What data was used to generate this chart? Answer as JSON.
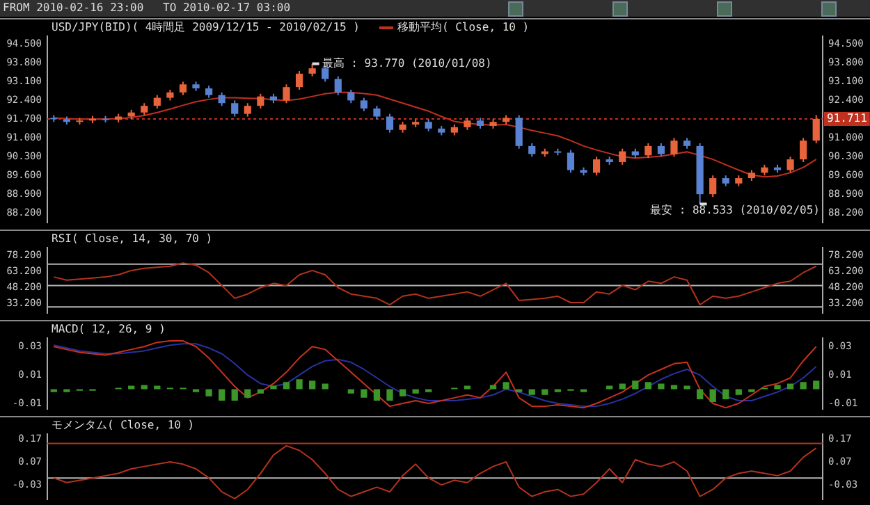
{
  "chart_data": [
    {
      "type": "candlestick",
      "title": "USD/JPY(BID)( 4時間足 2009/12/15 - 2010/02/15 )",
      "tick_labels": "y",
      "marker": "none",
      "categories": [
        null,
        null,
        null,
        null,
        null,
        null,
        null,
        null,
        null,
        null,
        null,
        null,
        null,
        null,
        null,
        null,
        null,
        null,
        null,
        null,
        null,
        null,
        null,
        null,
        null,
        null,
        null,
        null,
        null,
        null,
        null,
        null,
        null,
        null,
        null,
        null,
        null,
        null,
        null,
        null,
        null,
        null,
        null,
        null,
        null,
        null,
        null,
        null,
        null,
        null,
        null,
        null,
        null,
        null,
        null,
        null,
        null,
        null,
        null,
        null
      ],
      "ohlc": [
        [
          91.75,
          91.85,
          91.6,
          91.7
        ],
        [
          91.7,
          91.8,
          91.5,
          91.6
        ],
        [
          91.6,
          91.75,
          91.5,
          91.65
        ],
        [
          91.65,
          91.82,
          91.55,
          91.72
        ],
        [
          91.72,
          91.82,
          91.58,
          91.68
        ],
        [
          91.68,
          91.9,
          91.58,
          91.8
        ],
        [
          91.8,
          92.05,
          91.7,
          91.95
        ],
        [
          91.95,
          92.3,
          91.85,
          92.2
        ],
        [
          92.2,
          92.6,
          92.1,
          92.5
        ],
        [
          92.5,
          92.8,
          92.4,
          92.7
        ],
        [
          92.7,
          93.1,
          92.6,
          93.0
        ],
        [
          93.0,
          93.1,
          92.75,
          92.85
        ],
        [
          92.85,
          92.95,
          92.5,
          92.6
        ],
        [
          92.6,
          92.7,
          92.2,
          92.3
        ],
        [
          92.3,
          92.4,
          91.8,
          91.9
        ],
        [
          91.9,
          92.3,
          91.8,
          92.2
        ],
        [
          92.2,
          92.65,
          92.1,
          92.55
        ],
        [
          92.55,
          92.65,
          92.3,
          92.4
        ],
        [
          92.4,
          93.0,
          92.3,
          92.9
        ],
        [
          92.9,
          93.5,
          92.8,
          93.4
        ],
        [
          93.4,
          93.77,
          93.3,
          93.6
        ],
        [
          93.6,
          93.7,
          93.1,
          93.2
        ],
        [
          93.2,
          93.3,
          92.6,
          92.7
        ],
        [
          92.7,
          92.8,
          92.3,
          92.4
        ],
        [
          92.4,
          92.5,
          92.0,
          92.1
        ],
        [
          92.1,
          92.2,
          91.7,
          91.8
        ],
        [
          91.8,
          91.9,
          91.2,
          91.3
        ],
        [
          91.3,
          91.6,
          91.2,
          91.5
        ],
        [
          91.5,
          91.7,
          91.4,
          91.6
        ],
        [
          91.6,
          91.7,
          91.25,
          91.35
        ],
        [
          91.35,
          91.45,
          91.1,
          91.2
        ],
        [
          91.2,
          91.5,
          91.1,
          91.4
        ],
        [
          91.4,
          91.75,
          91.3,
          91.65
        ],
        [
          91.65,
          91.75,
          91.35,
          91.45
        ],
        [
          91.45,
          91.7,
          91.35,
          91.6
        ],
        [
          91.6,
          91.85,
          91.5,
          91.75
        ],
        [
          91.75,
          91.85,
          90.6,
          90.7
        ],
        [
          90.7,
          90.8,
          90.3,
          90.4
        ],
        [
          90.4,
          90.6,
          90.3,
          90.5
        ],
        [
          90.5,
          90.6,
          90.35,
          90.45
        ],
        [
          90.45,
          90.55,
          89.7,
          89.8
        ],
        [
          89.8,
          89.9,
          89.6,
          89.7
        ],
        [
          89.7,
          90.3,
          89.6,
          90.2
        ],
        [
          90.2,
          90.3,
          90.0,
          90.1
        ],
        [
          90.1,
          90.6,
          90.0,
          90.5
        ],
        [
          90.5,
          90.6,
          90.25,
          90.35
        ],
        [
          90.35,
          90.8,
          90.25,
          90.7
        ],
        [
          90.7,
          90.8,
          90.3,
          90.4
        ],
        [
          90.4,
          91.0,
          90.3,
          90.9
        ],
        [
          90.9,
          91.0,
          90.6,
          90.7
        ],
        [
          90.7,
          90.8,
          88.533,
          88.9
        ],
        [
          88.9,
          89.6,
          88.8,
          89.5
        ],
        [
          89.5,
          89.6,
          89.2,
          89.3
        ],
        [
          89.3,
          89.6,
          89.2,
          89.5
        ],
        [
          89.5,
          89.8,
          89.4,
          89.7
        ],
        [
          89.7,
          90.0,
          89.6,
          89.9
        ],
        [
          89.9,
          90.0,
          89.7,
          89.8
        ],
        [
          89.8,
          90.3,
          89.7,
          90.2
        ],
        [
          90.2,
          91.0,
          90.1,
          90.9
        ],
        [
          90.9,
          91.85,
          90.8,
          91.711
        ]
      ],
      "colors": [
        "#5a82d2",
        "#5a82d2",
        "#e8643c",
        "#e8643c",
        "#5a82d2",
        "#e8643c",
        "#e8643c",
        "#e8643c",
        "#e8643c",
        "#e8643c",
        "#e8643c",
        "#5a82d2",
        "#5a82d2",
        "#5a82d2",
        "#5a82d2",
        "#e8643c",
        "#e8643c",
        "#5a82d2",
        "#e8643c",
        "#e8643c",
        "#e8643c",
        "#5a82d2",
        "#5a82d2",
        "#5a82d2",
        "#5a82d2",
        "#5a82d2",
        "#5a82d2",
        "#e8643c",
        "#e8643c",
        "#5a82d2",
        "#5a82d2",
        "#e8643c",
        "#e8643c",
        "#5a82d2",
        "#e8643c",
        "#e8643c",
        "#5a82d2",
        "#5a82d2",
        "#e8643c",
        "#5a82d2",
        "#5a82d2",
        "#5a82d2",
        "#e8643c",
        "#5a82d2",
        "#e8643c",
        "#5a82d2",
        "#e8643c",
        "#5a82d2",
        "#e8643c",
        "#5a82d2",
        "#5a82d2",
        "#e8643c",
        "#5a82d2",
        "#e8643c",
        "#e8643c",
        "#e8643c",
        "#5a82d2",
        "#e8643c",
        "#e8643c",
        "#e8643c"
      ],
      "series": [
        {
          "type": "line",
          "name": "移動平均( Close, 10 )",
          "color": "#c0301e",
          "values": [
            91.75,
            91.72,
            91.7,
            91.7,
            91.7,
            91.72,
            91.76,
            91.84,
            91.95,
            92.08,
            92.22,
            92.35,
            92.44,
            92.5,
            92.5,
            92.48,
            92.47,
            92.43,
            92.4,
            92.45,
            92.55,
            92.65,
            92.7,
            92.7,
            92.66,
            92.6,
            92.45,
            92.3,
            92.15,
            92.0,
            91.8,
            91.62,
            91.55,
            91.5,
            91.48,
            91.5,
            91.4,
            91.28,
            91.18,
            91.08,
            90.9,
            90.7,
            90.55,
            90.42,
            90.3,
            90.25,
            90.28,
            90.32,
            90.4,
            90.48,
            90.35,
            90.2,
            90.0,
            89.8,
            89.62,
            89.55,
            89.58,
            89.7,
            89.9,
            90.2
          ]
        }
      ],
      "ylim": [
        87.85,
        94.8
      ],
      "yticks": [
        {
          "value": 94.5,
          "label": "94.500"
        },
        {
          "value": 93.8,
          "label": "93.800"
        },
        {
          "value": 93.1,
          "label": "93.100"
        },
        {
          "value": 92.4,
          "label": "92.400"
        },
        {
          "value": 91.7,
          "label": "91.700"
        },
        {
          "value": 91.0,
          "label": "91.000"
        },
        {
          "value": 90.3,
          "label": "90.300"
        },
        {
          "value": 89.6,
          "label": "89.600"
        },
        {
          "value": 88.9,
          "label": "88.900"
        },
        {
          "value": 88.2,
          "label": "88.200"
        }
      ],
      "y2lim": [
        87.85,
        94.8
      ],
      "y2ticks": [
        {
          "value": 94.5,
          "label": "94.500"
        },
        {
          "value": 93.8,
          "label": "93.800"
        },
        {
          "value": 93.1,
          "label": "93.100"
        },
        {
          "value": 92.4,
          "label": "92.400"
        },
        {
          "value": 91.0,
          "label": "91.000"
        },
        {
          "value": 90.3,
          "label": "90.300"
        },
        {
          "value": 89.6,
          "label": "89.600"
        },
        {
          "value": 88.9,
          "label": "88.900"
        },
        {
          "value": 88.2,
          "label": "88.200"
        }
      ],
      "ref_lines": [
        {
          "axis": "y",
          "value": 91.711,
          "label": "91.711",
          "color": "#c0301e",
          "line_style": "dotted"
        }
      ],
      "annotations": [
        "FROM 2010-02-16 23:00",
        "TO 2010-02-17 03:00",
        "最高 : 93.770 (2010/01/08)",
        "最安 : 88.533 (2010/02/05)"
      ]
    },
    {
      "type": "line",
      "title": "RSI( Close, 14, 30, 70 )",
      "tick_labels": "y",
      "marker": "none",
      "categories": [
        null,
        null,
        null,
        null,
        null,
        null,
        null,
        null,
        null,
        null,
        null,
        null,
        null,
        null,
        null,
        null,
        null,
        null,
        null,
        null,
        null,
        null,
        null,
        null,
        null,
        null,
        null,
        null,
        null,
        null,
        null,
        null,
        null,
        null,
        null,
        null,
        null,
        null,
        null,
        null,
        null,
        null,
        null,
        null,
        null,
        null,
        null,
        null,
        null,
        null,
        null,
        null,
        null,
        null,
        null,
        null,
        null,
        null,
        null,
        null
      ],
      "series": [
        {
          "color": "#b4321e",
          "values": [
            58,
            55,
            56,
            57,
            58,
            60,
            64,
            66,
            67,
            68,
            71,
            69,
            62,
            50,
            38,
            42,
            48,
            52,
            50,
            60,
            64,
            60,
            48,
            42,
            40,
            38,
            32,
            40,
            42,
            38,
            40,
            42,
            44,
            40,
            46,
            52,
            36,
            37,
            38,
            40,
            34,
            34,
            44,
            42,
            50,
            46,
            54,
            52,
            58,
            55,
            32,
            40,
            38,
            40,
            44,
            48,
            52,
            54,
            62,
            68
          ]
        }
      ],
      "ylim": [
        24.5,
        85.4
      ],
      "yticks": [
        {
          "value": 78.2,
          "label": "78.200"
        },
        {
          "value": 63.2,
          "label": "63.200"
        },
        {
          "value": 48.2,
          "label": "48.200"
        },
        {
          "value": 33.2,
          "label": "33.200"
        }
      ],
      "y2lim": [
        24.5,
        85.4
      ],
      "y2ticks": [
        {
          "value": 78.2,
          "label": "78.200"
        },
        {
          "value": 63.2,
          "label": "63.200"
        },
        {
          "value": 48.2,
          "label": "48.200"
        },
        {
          "value": 33.2,
          "label": "33.200"
        }
      ],
      "ref_lines": [
        {
          "axis": "y",
          "value": 70,
          "color": "#b4b4b4"
        },
        {
          "axis": "y",
          "value": 50,
          "color": "#b4b4b4"
        },
        {
          "axis": "y",
          "value": 30,
          "color": "#b4b4b4"
        }
      ]
    },
    {
      "type": "line",
      "title": "MACD( 12, 26, 9 )",
      "tick_labels": "y",
      "marker": "none",
      "categories": [
        null,
        null,
        null,
        null,
        null,
        null,
        null,
        null,
        null,
        null,
        null,
        null,
        null,
        null,
        null,
        null,
        null,
        null,
        null,
        null,
        null,
        null,
        null,
        null,
        null,
        null,
        null,
        null,
        null,
        null,
        null,
        null,
        null,
        null,
        null,
        null,
        null,
        null,
        null,
        null,
        null,
        null,
        null,
        null,
        null,
        null,
        null,
        null,
        null,
        null,
        null,
        null,
        null,
        null,
        null,
        null,
        null,
        null,
        null,
        null
      ],
      "series": [
        {
          "type": "bar",
          "color": "#3c9628",
          "values": [
            -0.002,
            -0.002,
            -0.001,
            -0.001,
            0.0,
            0.001,
            0.0025,
            0.003,
            0.0025,
            0.001,
            0.001,
            -0.002,
            -0.005,
            -0.008,
            -0.008,
            -0.006,
            -0.003,
            0.0025,
            0.005,
            0.007,
            0.006,
            0.004,
            0.0,
            -0.003,
            -0.006,
            -0.008,
            -0.008,
            -0.005,
            -0.003,
            -0.002,
            0.0,
            0.001,
            0.0025,
            0.0,
            0.003,
            0.005,
            -0.002,
            -0.004,
            -0.004,
            -0.002,
            -0.001,
            -0.002,
            0.0,
            0.0025,
            0.004,
            0.006,
            0.005,
            0.004,
            0.003,
            0.0025,
            -0.007,
            -0.009,
            -0.007,
            -0.004,
            -0.002,
            0.001,
            0.003,
            0.004,
            0.005,
            0.006
          ]
        },
        {
          "type": "line",
          "color": "#c8321e",
          "values": [
            0.03,
            0.028,
            0.026,
            0.025,
            0.024,
            0.026,
            0.028,
            0.03,
            0.033,
            0.034,
            0.034,
            0.03,
            0.022,
            0.012,
            0.002,
            -0.006,
            -0.002,
            0.004,
            0.012,
            0.022,
            0.03,
            0.028,
            0.02,
            0.012,
            0.004,
            -0.004,
            -0.012,
            -0.01,
            -0.008,
            -0.01,
            -0.008,
            -0.006,
            -0.004,
            -0.006,
            0.002,
            0.012,
            -0.006,
            -0.012,
            -0.012,
            -0.011,
            -0.012,
            -0.013,
            -0.01,
            -0.006,
            -0.002,
            0.004,
            0.01,
            0.014,
            0.018,
            0.019,
            0.0,
            -0.01,
            -0.013,
            -0.01,
            -0.004,
            0.002,
            0.004,
            0.008,
            0.02,
            0.03
          ]
        },
        {
          "type": "line",
          "color": "#2832a0",
          "values": [
            0.031,
            0.029,
            0.027,
            0.026,
            0.025,
            0.025,
            0.026,
            0.027,
            0.029,
            0.031,
            0.032,
            0.032,
            0.029,
            0.025,
            0.018,
            0.01,
            0.004,
            0.002,
            0.004,
            0.01,
            0.016,
            0.02,
            0.021,
            0.019,
            0.014,
            0.008,
            0.002,
            -0.003,
            -0.006,
            -0.008,
            -0.008,
            -0.008,
            -0.007,
            -0.006,
            -0.004,
            0.0,
            -0.002,
            -0.005,
            -0.008,
            -0.01,
            -0.011,
            -0.012,
            -0.012,
            -0.01,
            -0.007,
            -0.003,
            0.002,
            0.007,
            0.011,
            0.014,
            0.01,
            0.002,
            -0.005,
            -0.008,
            -0.008,
            -0.005,
            -0.002,
            0.002,
            0.008,
            0.016
          ]
        }
      ],
      "ylim": [
        -0.0137,
        0.036
      ],
      "yticks": [
        0.03,
        0.01,
        -0.01
      ],
      "y2lim": [
        -0.0137,
        0.036
      ],
      "y2ticks": [
        0.03,
        0.01,
        -0.01
      ]
    },
    {
      "type": "line",
      "title": "モメンタム( Close, 10 )",
      "tick_labels": "y",
      "marker": "none",
      "categories": [
        null,
        null,
        null,
        null,
        null,
        null,
        null,
        null,
        null,
        null,
        null,
        null,
        null,
        null,
        null,
        null,
        null,
        null,
        null,
        null,
        null,
        null,
        null,
        null,
        null,
        null,
        null,
        null,
        null,
        null,
        null,
        null,
        null,
        null,
        null,
        null,
        null,
        null,
        null,
        null,
        null,
        null,
        null,
        null,
        null,
        null,
        null,
        null,
        null,
        null,
        null,
        null,
        null,
        null,
        null,
        null,
        null,
        null,
        null,
        null
      ],
      "series": [
        {
          "color": "#b4321e",
          "values": [
            0.0,
            -0.02,
            -0.01,
            0.0,
            0.01,
            0.02,
            0.04,
            0.05,
            0.06,
            0.07,
            0.06,
            0.04,
            0.0,
            -0.06,
            -0.09,
            -0.05,
            0.02,
            0.1,
            0.14,
            0.12,
            0.08,
            0.02,
            -0.05,
            -0.08,
            -0.06,
            -0.04,
            -0.06,
            0.01,
            0.06,
            0.0,
            -0.03,
            -0.01,
            -0.02,
            0.02,
            0.05,
            0.07,
            -0.04,
            -0.08,
            -0.06,
            -0.05,
            -0.08,
            -0.07,
            -0.02,
            0.04,
            -0.02,
            0.08,
            0.06,
            0.05,
            0.07,
            0.03,
            -0.08,
            -0.05,
            0.0,
            0.02,
            0.03,
            0.02,
            0.01,
            0.03,
            0.09,
            0.13
          ]
        }
      ],
      "ylim": [
        -0.092,
        0.191
      ],
      "yticks": [
        0.17,
        0.07,
        -0.03
      ],
      "y2lim": [
        -0.092,
        0.191
      ],
      "y2ticks": [
        0.17,
        0.07,
        -0.03
      ],
      "ref_lines": [
        {
          "axis": "y",
          "value": 0.15,
          "color": "#b4321e"
        },
        {
          "axis": "y",
          "value": 0,
          "color": "#b4b4b4"
        }
      ]
    }
  ]
}
